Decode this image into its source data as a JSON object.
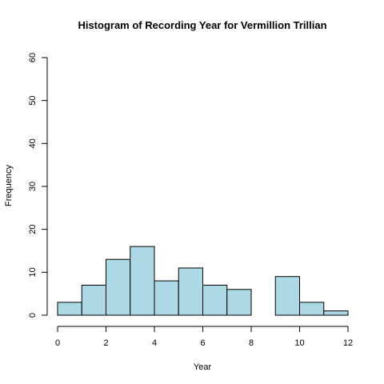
{
  "chart_data": {
    "type": "bar",
    "title": "Histogram of Recording Year for Vermillion Trillian",
    "xlabel": "Year",
    "ylabel": "Frequency",
    "bin_edges": [
      0,
      1,
      2,
      3,
      4,
      5,
      6,
      7,
      8,
      9,
      10,
      11,
      12
    ],
    "values": [
      3,
      7,
      13,
      16,
      8,
      11,
      7,
      6,
      0,
      9,
      3,
      1
    ],
    "xlim": [
      0,
      12
    ],
    "ylim": [
      0,
      60
    ],
    "x_ticks": [
      0,
      2,
      4,
      6,
      8,
      10,
      12
    ],
    "y_ticks": [
      0,
      10,
      20,
      30,
      40,
      50,
      60
    ],
    "bar_color": "#add8e6",
    "grid": false
  }
}
